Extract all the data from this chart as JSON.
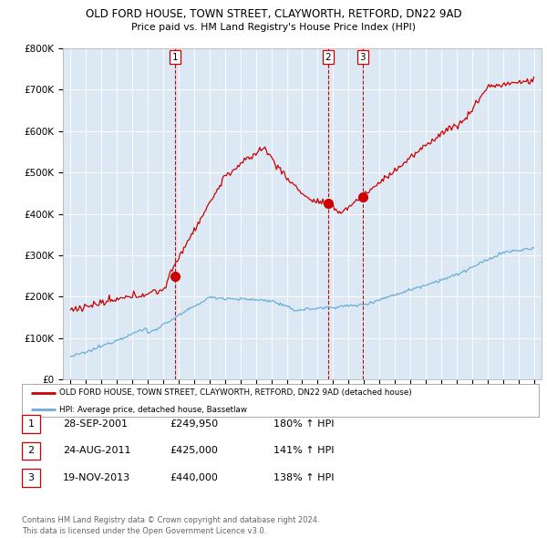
{
  "title": "OLD FORD HOUSE, TOWN STREET, CLAYWORTH, RETFORD, DN22 9AD",
  "subtitle": "Price paid vs. HM Land Registry's House Price Index (HPI)",
  "ylabel_ticks": [
    "£0",
    "£100K",
    "£200K",
    "£300K",
    "£400K",
    "£500K",
    "£600K",
    "£700K",
    "£800K"
  ],
  "ytick_values": [
    0,
    100000,
    200000,
    300000,
    400000,
    500000,
    600000,
    700000,
    800000
  ],
  "ylim": [
    0,
    800000
  ],
  "sale_year_vals": [
    2001.75,
    2011.67,
    2013.92
  ],
  "sale_prices": [
    249950,
    425000,
    440000
  ],
  "sale_labels": [
    "1",
    "2",
    "3"
  ],
  "legend_line1": "OLD FORD HOUSE, TOWN STREET, CLAYWORTH, RETFORD, DN22 9AD (detached house)",
  "legend_line2": "HPI: Average price, detached house, Bassetlaw",
  "table_rows": [
    [
      "1",
      "28-SEP-2001",
      "£249,950",
      "180% ↑ HPI"
    ],
    [
      "2",
      "24-AUG-2011",
      "£425,000",
      "141% ↑ HPI"
    ],
    [
      "3",
      "19-NOV-2013",
      "£440,000",
      "138% ↑ HPI"
    ]
  ],
  "footer": "Contains HM Land Registry data © Crown copyright and database right 2024.\nThis data is licensed under the Open Government Licence v3.0.",
  "hpi_color": "#6baed6",
  "price_color": "#cc0000",
  "vline_color": "#cc0000",
  "chart_bg": "#dce9f5",
  "grid_color": "#ffffff",
  "fig_bg": "#ffffff"
}
